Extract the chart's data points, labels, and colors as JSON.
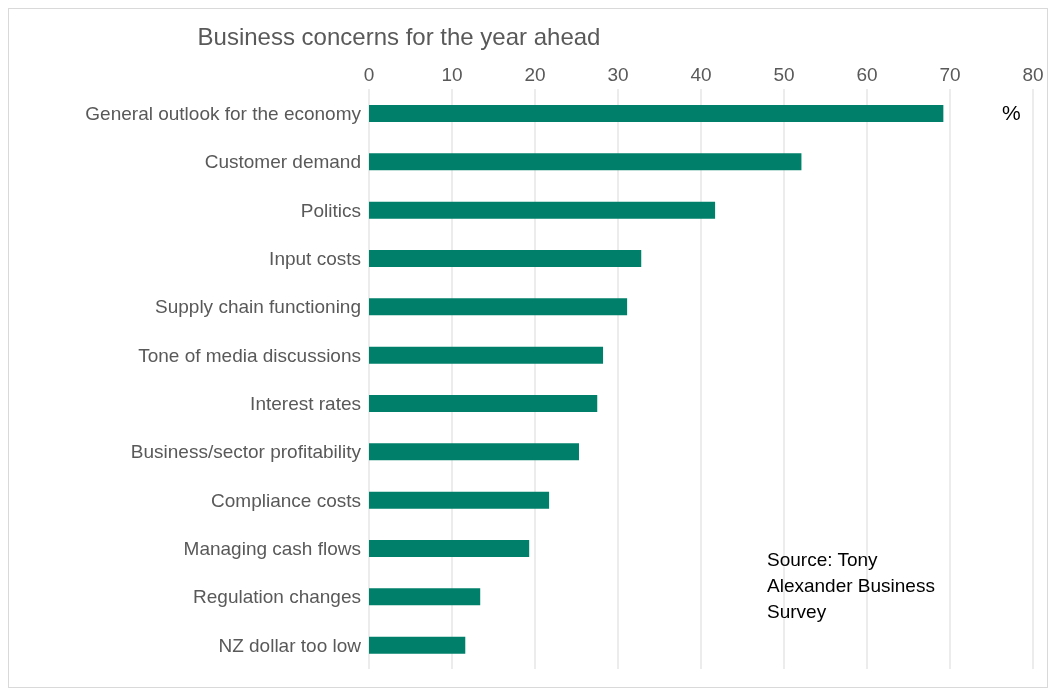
{
  "chart_data": {
    "type": "bar",
    "orientation": "horizontal",
    "title": "Business concerns for the year ahead",
    "categories": [
      "General outlook for the economy",
      "Customer demand",
      "Politics",
      "Input costs",
      "Supply chain functioning",
      "Tone of media discussions",
      "Interest rates",
      "Business/sector profitability",
      "Compliance costs",
      "Managing cash flows",
      "Regulation changes",
      "NZ dollar too low"
    ],
    "values": [
      69.2,
      52.1,
      41.7,
      32.8,
      31.1,
      28.2,
      27.5,
      25.3,
      21.7,
      19.3,
      13.4,
      11.6
    ],
    "color": "#00806a",
    "xlim": [
      0,
      80
    ],
    "xticks": [
      0,
      10,
      20,
      30,
      40,
      50,
      60,
      70,
      80
    ],
    "grid": "x",
    "annotations": [
      "%",
      "Source: Tony Alexander Business Survey"
    ]
  }
}
